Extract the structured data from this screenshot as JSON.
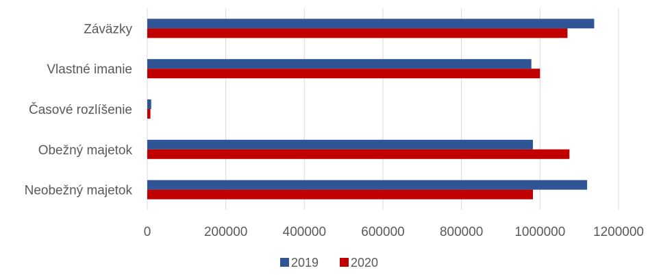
{
  "chart_data": {
    "type": "bar",
    "orientation": "horizontal",
    "categories": [
      "Záväzky",
      "Vlastné imanie",
      "Časové rozlíšenie",
      "Obežný majetok",
      "Neobežný majetok"
    ],
    "series": [
      {
        "name": "2019",
        "color": "#2F5597",
        "values": [
          1138000,
          978000,
          10000,
          982000,
          1120000
        ]
      },
      {
        "name": "2020",
        "color": "#C00000",
        "values": [
          1070000,
          1000000,
          8000,
          1075000,
          982000
        ]
      }
    ],
    "x_ticks": [
      "0",
      "200000",
      "400000",
      "600000",
      "800000",
      "1000000",
      "1200000"
    ],
    "xlim": [
      0,
      1200000
    ],
    "grid": "vertical",
    "legend": "bottom"
  }
}
